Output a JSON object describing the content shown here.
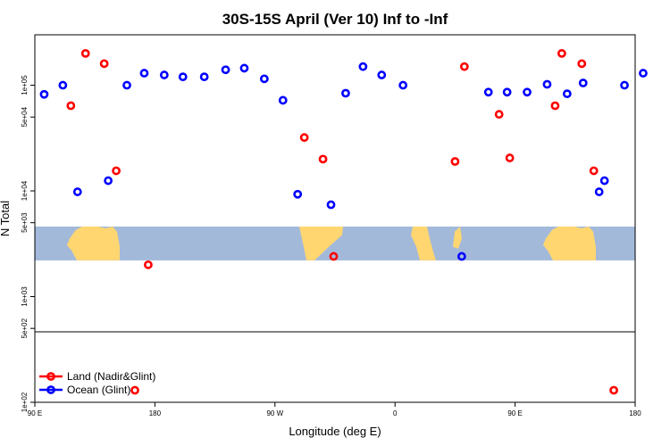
{
  "chart_data": {
    "type": "scatter",
    "title": "30S-15S April (Ver 10)   Inf to -Inf",
    "xlabel": "Longitude (deg E)",
    "ylabel": "N Total",
    "x_ticks": [
      {
        "value": 90,
        "label": "90 E"
      },
      {
        "value": 180,
        "label": "180"
      },
      {
        "value": 270,
        "label": "90 W"
      },
      {
        "value": 360,
        "label": "0"
      },
      {
        "value": 450,
        "label": "90 E"
      },
      {
        "value": 540,
        "label": "180"
      }
    ],
    "y_ticks": [
      {
        "value": 100,
        "label": "1e+02"
      },
      {
        "value": 500,
        "label": "5e+02"
      },
      {
        "value": 1000,
        "label": "1e+03"
      },
      {
        "value": 5000,
        "label": "5e+03"
      },
      {
        "value": 10000,
        "label": "1e+04"
      },
      {
        "value": 50000,
        "label": "5e+04"
      },
      {
        "value": 100000,
        "label": "1e+05"
      }
    ],
    "xlim": [
      90,
      540
    ],
    "ylim": [
      100,
      300000
    ],
    "log_y": true,
    "legend_position": "bottom-left",
    "map_band": {
      "ymin": 2200,
      "ymax": 4600
    },
    "series": [
      {
        "name": "Land (Nadir&Glint)",
        "color": "#ff0000",
        "points": [
          [
            117,
            64000
          ],
          [
            128,
            200000
          ],
          [
            142,
            160000
          ],
          [
            151,
            15500
          ],
          [
            165,
            130
          ],
          [
            175,
            2000
          ],
          [
            292,
            32000
          ],
          [
            306,
            20000
          ],
          [
            314,
            2400
          ],
          [
            405,
            19000
          ],
          [
            412,
            150000
          ],
          [
            438,
            53000
          ],
          [
            446,
            20500
          ],
          [
            480,
            64000
          ],
          [
            485,
            200000
          ],
          [
            500,
            160000
          ],
          [
            509,
            15500
          ],
          [
            524,
            130
          ]
        ]
      },
      {
        "name": "Ocean (Glint)",
        "color": "#0000ff",
        "points": [
          [
            97,
            82000
          ],
          [
            111,
            100000
          ],
          [
            122,
            9800
          ],
          [
            145,
            12500
          ],
          [
            159,
            100000
          ],
          [
            172,
            130000
          ],
          [
            187,
            125000
          ],
          [
            201,
            120000
          ],
          [
            217,
            120000
          ],
          [
            233,
            140000
          ],
          [
            247,
            145000
          ],
          [
            262,
            115000
          ],
          [
            276,
            72000
          ],
          [
            287,
            9300
          ],
          [
            312,
            7400
          ],
          [
            323,
            84000
          ],
          [
            336,
            150000
          ],
          [
            350,
            125000
          ],
          [
            366,
            100000
          ],
          [
            410,
            2400
          ],
          [
            430,
            86000
          ],
          [
            444,
            86000
          ],
          [
            459,
            86000
          ],
          [
            474,
            102000
          ],
          [
            489,
            83000
          ],
          [
            501,
            105000
          ],
          [
            513,
            9800
          ],
          [
            517,
            12500
          ],
          [
            532,
            100000
          ],
          [
            546,
            130000
          ]
        ]
      }
    ]
  }
}
